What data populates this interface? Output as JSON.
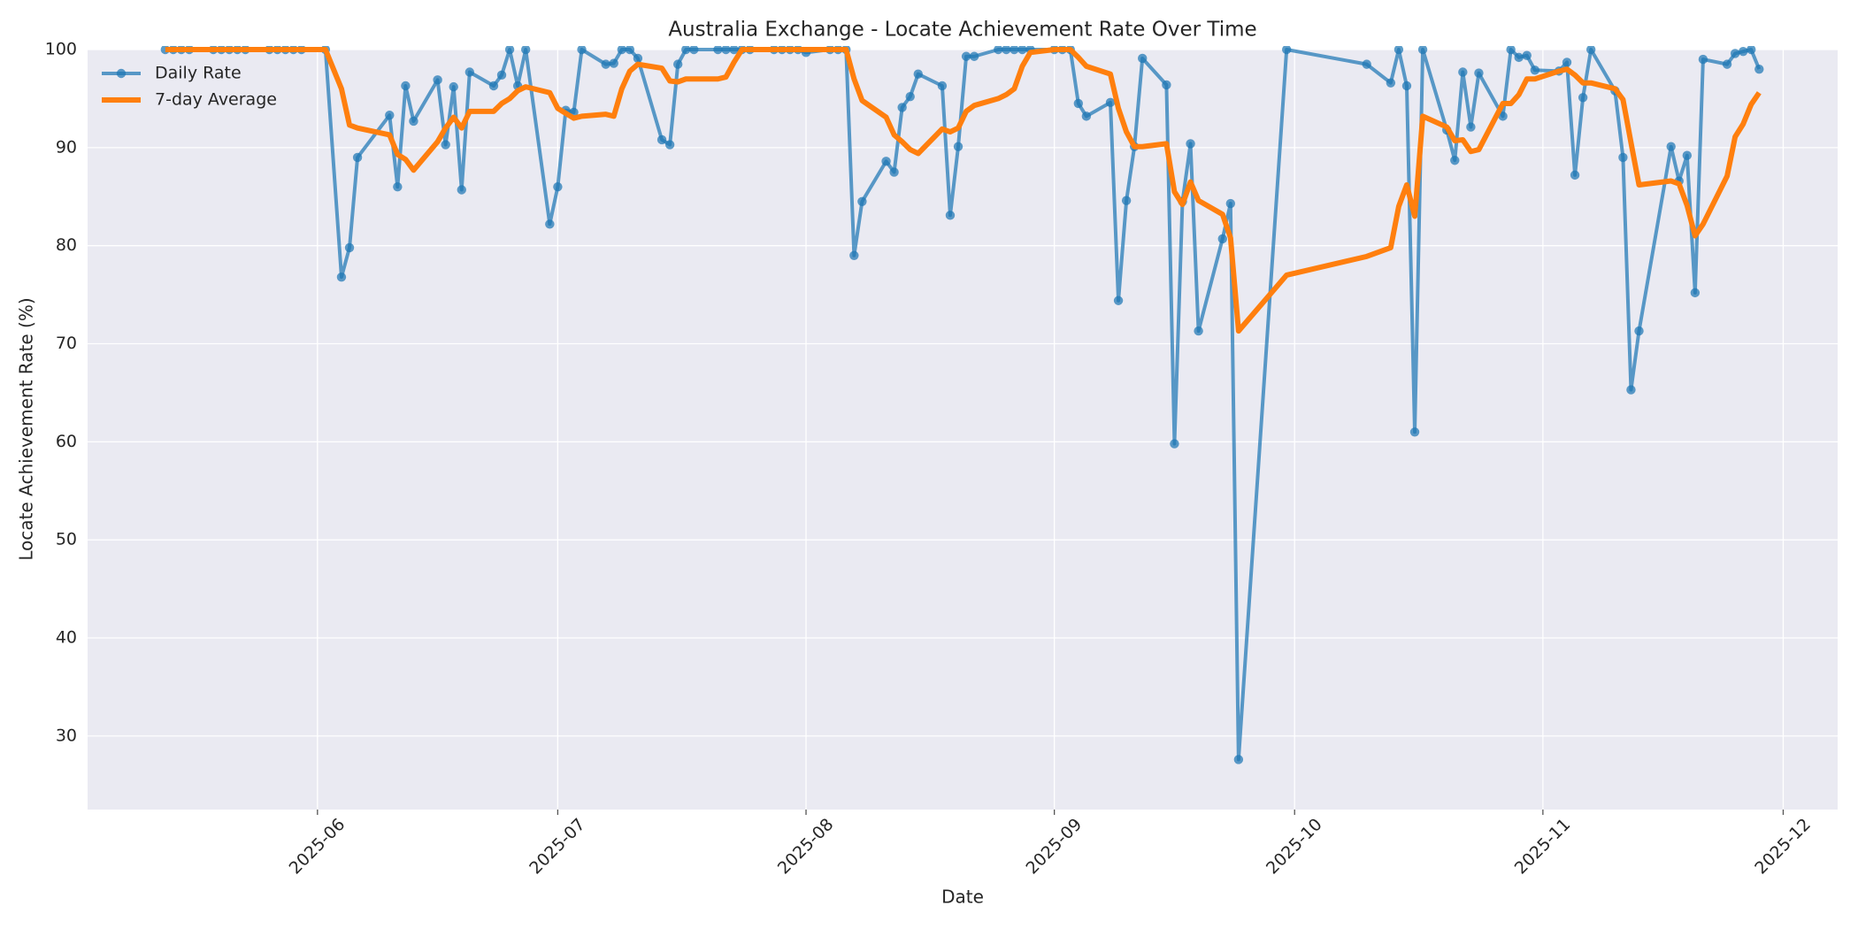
{
  "chart_data": {
    "type": "line",
    "title": "Australia Exchange - Locate Achievement Rate Over Time",
    "x_label": "Date",
    "y_label": "Locate Achievement Rate (%)",
    "x": [
      20221,
      20222,
      20223,
      20224,
      20227,
      20228,
      20229,
      20230,
      20231,
      20234,
      20235,
      20236,
      20237,
      20238,
      20241,
      20243,
      20244,
      20245,
      20249,
      20250,
      20251,
      20252,
      20255,
      20256,
      20257,
      20258,
      20259,
      20262,
      20263,
      20264,
      20265,
      20266,
      20269,
      20270,
      20271,
      20272,
      20273,
      20276,
      20277,
      20278,
      20279,
      20280,
      20283,
      20284,
      20285,
      20286,
      20287,
      20290,
      20291,
      20292,
      20293,
      20294,
      20297,
      20298,
      20299,
      20300,
      20301,
      20304,
      20305,
      20306,
      20307,
      20308,
      20311,
      20312,
      20313,
      20314,
      20315,
      20318,
      20319,
      20320,
      20321,
      20322,
      20325,
      20326,
      20327,
      20328,
      20329,
      20332,
      20333,
      20334,
      20335,
      20336,
      20339,
      20340,
      20341,
      20342,
      20343,
      20346,
      20347,
      20348,
      20349,
      20350,
      20353,
      20354,
      20355,
      20361,
      20371,
      20374,
      20375,
      20376,
      20377,
      20378,
      20381,
      20382,
      20383,
      20384,
      20385,
      20388,
      20389,
      20390,
      20391,
      20392,
      20395,
      20396,
      20397,
      20398,
      20399,
      20402,
      20403,
      20404,
      20405,
      20409,
      20410,
      20411,
      20412,
      20413,
      20416,
      20417,
      20418,
      20419,
      20420
    ],
    "series": [
      {
        "name": "Daily Rate",
        "color": "#1f77b4",
        "marker": "o",
        "width": 4,
        "opacity": 0.72,
        "values": [
          100,
          100,
          100,
          100,
          100,
          100,
          100,
          100,
          100,
          100,
          100,
          100,
          100,
          100,
          100,
          76.8,
          79.8,
          89,
          93.3,
          86,
          96.3,
          92.7,
          96.9,
          90.3,
          96.2,
          85.7,
          97.7,
          96.3,
          97.4,
          100,
          96.3,
          100,
          82.2,
          86,
          93.8,
          93.6,
          100,
          98.5,
          98.6,
          100,
          100,
          99.1,
          90.8,
          90.3,
          98.5,
          100,
          100,
          100,
          100,
          100,
          100,
          100,
          100,
          100,
          100,
          100,
          99.7,
          100,
          100,
          100,
          79,
          84.5,
          88.6,
          87.5,
          94.1,
          95.2,
          97.5,
          96.3,
          83.1,
          90.1,
          99.3,
          99.3,
          100,
          100,
          100,
          100,
          100,
          100,
          100,
          100,
          94.5,
          93.2,
          94.6,
          74.4,
          84.6,
          90.1,
          99.1,
          96.4,
          59.8,
          84.5,
          90.4,
          71.3,
          80.7,
          84.3,
          27.6,
          100,
          98.5,
          96.6,
          100,
          96.3,
          61,
          100,
          91.8,
          88.7,
          97.7,
          92.1,
          97.6,
          93.2,
          100,
          99.2,
          99.4,
          97.9,
          97.8,
          98.7,
          87.2,
          95.1,
          100,
          95.8,
          89,
          65.3,
          71.3,
          90.1,
          86.6,
          89.2,
          75.2,
          99,
          98.5,
          99.6,
          99.8,
          100,
          98
        ]
      },
      {
        "name": "7-day Average",
        "color": "#ff7f0e",
        "marker": "none",
        "width": 6,
        "opacity": 1,
        "values": [
          100,
          100,
          100,
          100,
          100,
          100,
          100,
          100,
          100,
          100,
          100,
          100,
          100,
          100,
          100,
          96,
          92.3,
          92,
          91.3,
          89.3,
          88.8,
          87.7,
          90.6,
          92,
          93.1,
          92,
          93.7,
          93.7,
          94.5,
          95,
          95.8,
          96.2,
          95.6,
          94,
          93.5,
          93,
          93.2,
          93.4,
          93.2,
          96,
          97.8,
          98.5,
          98.1,
          96.8,
          96.7,
          97,
          97,
          97,
          97.2,
          98.7,
          100,
          100,
          100,
          100,
          100,
          100,
          100,
          100,
          100,
          100,
          97,
          94.8,
          93.1,
          91.3,
          90.6,
          89.8,
          89.4,
          91.9,
          91.6,
          92,
          93.7,
          94.3,
          95,
          95.4,
          96,
          98.3,
          99.7,
          100,
          100,
          100,
          99.2,
          98.3,
          97.5,
          94,
          91.6,
          90.1,
          90.1,
          90.4,
          85.5,
          84.2,
          86.5,
          84.6,
          83.2,
          80.8,
          71.3,
          77,
          78.9,
          79.8,
          84,
          86.2,
          83,
          93.2,
          92.1,
          90.7,
          90.8,
          89.6,
          89.8,
          94.5,
          94.5,
          95.4,
          97,
          97,
          97.8,
          98,
          97.4,
          96.6,
          96.6,
          96,
          94.9,
          90.5,
          86.2,
          86.6,
          86.3,
          84.1,
          81,
          82.2,
          87.1,
          91.1,
          92.4,
          94.4,
          95.6
        ]
      }
    ],
    "xlim": [
      20211.3,
      20429.8
    ],
    "xticks": [
      {
        "value": 20240,
        "label": "2025-06"
      },
      {
        "value": 20270,
        "label": "2025-07"
      },
      {
        "value": 20301,
        "label": "2025-08"
      },
      {
        "value": 20332,
        "label": "2025-09"
      },
      {
        "value": 20362,
        "label": "2025-10"
      },
      {
        "value": 20393,
        "label": "2025-11"
      },
      {
        "value": 20423,
        "label": "2025-12"
      }
    ],
    "ylim": [
      22.5,
      100
    ],
    "yticks": [
      30,
      40,
      50,
      60,
      70,
      80,
      90,
      100
    ],
    "grid": true,
    "legend": "upper left"
  }
}
